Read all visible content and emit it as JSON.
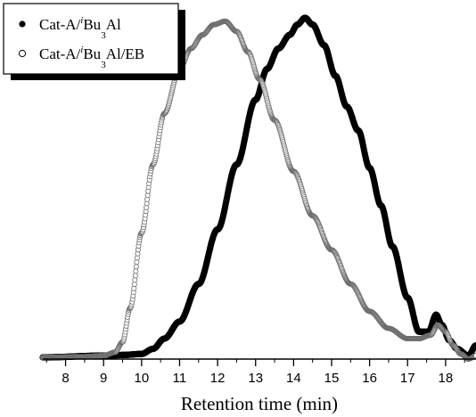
{
  "chart_data": {
    "type": "scatter",
    "xlabel": "Retention time (min)",
    "ylabel": "",
    "xlim": [
      7.4,
      18.8
    ],
    "ylim": [
      0,
      1.0
    ],
    "xticks": [
      "8",
      "9",
      "10",
      "11",
      "12",
      "13",
      "14",
      "15",
      "16",
      "17",
      "18"
    ],
    "minor_ticks": true,
    "y_axis_visible": false,
    "grid": false,
    "legend": {
      "placement": "top-left",
      "entries": [
        {
          "marker": "filled-circle",
          "parts": [
            {
              "t": "Cat-A/",
              "s": "normal"
            },
            {
              "t": "i",
              "s": "sup"
            },
            {
              "t": "Bu",
              "s": "normal"
            },
            {
              "t": "3",
              "s": "sub"
            },
            {
              "t": "Al",
              "s": "normal"
            }
          ]
        },
        {
          "marker": "open-circle",
          "parts": [
            {
              "t": "Cat-A/",
              "s": "normal"
            },
            {
              "t": "i",
              "s": "sup"
            },
            {
              "t": "Bu",
              "s": "normal"
            },
            {
              "t": "3",
              "s": "sub"
            },
            {
              "t": "Al/EB",
              "s": "normal"
            }
          ]
        }
      ]
    },
    "series": [
      {
        "marker": "filled-circle",
        "color": "#000000",
        "x": [
          7.4,
          9.0,
          9.5,
          10.0,
          10.3,
          10.6,
          11.0,
          11.5,
          12.0,
          12.5,
          13.0,
          13.3,
          13.6,
          13.9,
          14.1,
          14.3,
          14.5,
          14.8,
          15.1,
          15.4,
          15.7,
          16.0,
          16.3,
          16.6,
          17.0,
          17.3,
          17.55,
          17.75,
          17.9,
          18.1,
          18.3,
          18.6,
          18.8
        ],
        "y": [
          0.005,
          0.01,
          0.012,
          0.015,
          0.03,
          0.06,
          0.11,
          0.22,
          0.38,
          0.57,
          0.76,
          0.85,
          0.91,
          0.95,
          0.98,
          1.0,
          0.98,
          0.92,
          0.83,
          0.74,
          0.67,
          0.56,
          0.45,
          0.33,
          0.18,
          0.08,
          0.08,
          0.13,
          0.1,
          0.055,
          0.03,
          0.01,
          0.04
        ]
      },
      {
        "marker": "open-circle",
        "color": "#6e6e6e",
        "x": [
          7.4,
          8.5,
          9.0,
          9.3,
          9.5,
          9.7,
          10.0,
          10.3,
          10.6,
          11.0,
          11.3,
          11.6,
          11.9,
          12.2,
          12.5,
          12.8,
          13.1,
          13.5,
          14.0,
          14.5,
          15.0,
          15.5,
          16.0,
          16.5,
          17.0,
          17.3,
          17.6,
          17.8,
          18.0,
          18.2,
          18.4,
          18.6,
          18.8
        ],
        "y": [
          0.005,
          0.007,
          0.01,
          0.02,
          0.05,
          0.15,
          0.37,
          0.57,
          0.72,
          0.85,
          0.91,
          0.95,
          0.98,
          0.99,
          0.96,
          0.9,
          0.82,
          0.7,
          0.55,
          0.42,
          0.32,
          0.22,
          0.14,
          0.09,
          0.06,
          0.06,
          0.07,
          0.1,
          0.08,
          0.04,
          0.015,
          0.0,
          0.01
        ]
      }
    ]
  }
}
